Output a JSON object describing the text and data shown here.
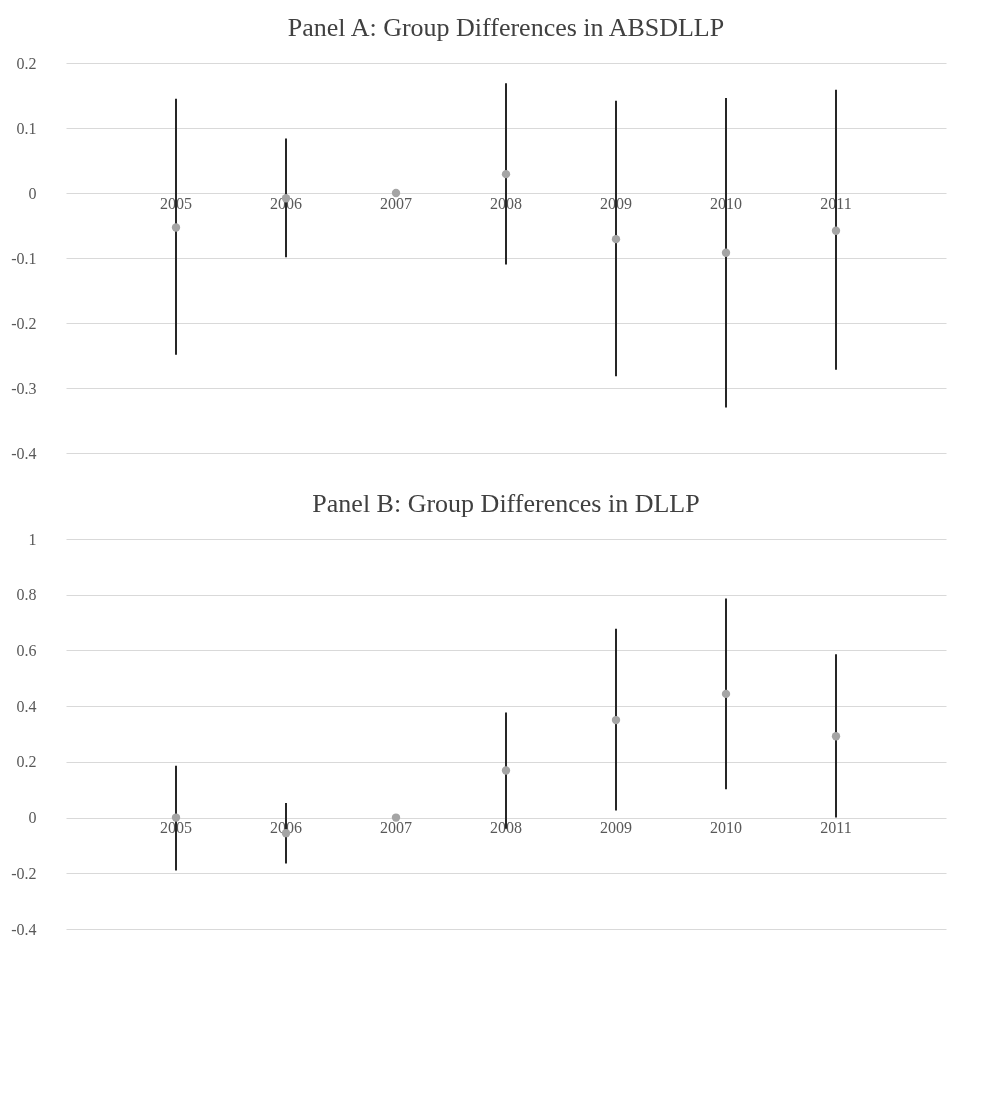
{
  "chart_data": [
    {
      "type": "scatter",
      "title": "Panel A: Group Differences in ABSDLLP",
      "categories": [
        "2005",
        "2006",
        "2007",
        "2008",
        "2009",
        "2010",
        "2011"
      ],
      "series": [
        {
          "color": "#a5a5a5",
          "values": [
            -0.053,
            -0.008,
            0,
            0.029,
            -0.071,
            -0.092,
            -0.058
          ],
          "errors": [
            [
              -0.249,
              0.145
            ],
            [
              -0.099,
              0.084
            ],
            null,
            [
              -0.11,
              0.169
            ],
            [
              -0.282,
              0.142
            ],
            [
              -0.33,
              0.146
            ],
            [
              -0.272,
              0.159
            ]
          ]
        }
      ],
      "ylim": [
        -0.4,
        0.2
      ],
      "yticks": [
        -0.4,
        -0.3,
        -0.2,
        -0.1,
        0,
        0.1,
        0.2
      ],
      "grid": "y",
      "marker": "circle"
    },
    {
      "type": "scatter",
      "title": "Panel B: Group Differences in DLLP",
      "categories": [
        "2005",
        "2006",
        "2007",
        "2008",
        "2009",
        "2010",
        "2011"
      ],
      "series": [
        {
          "color": "#a5a5a5",
          "values": [
            0,
            -0.056,
            0,
            0.169,
            0.35,
            0.444,
            0.292
          ],
          "errors": [
            [
              -0.19,
              0.186
            ],
            [
              -0.165,
              0.052
            ],
            null,
            [
              -0.04,
              0.377
            ],
            [
              0.025,
              0.678
            ],
            [
              0.102,
              0.786
            ],
            [
              0.0,
              0.586
            ]
          ]
        }
      ],
      "ylim": [
        -0.4,
        1
      ],
      "yticks": [
        -0.4,
        -0.2,
        0,
        0.2,
        0.4,
        0.6,
        0.8,
        1
      ],
      "grid": "y",
      "marker": "circle"
    }
  ]
}
